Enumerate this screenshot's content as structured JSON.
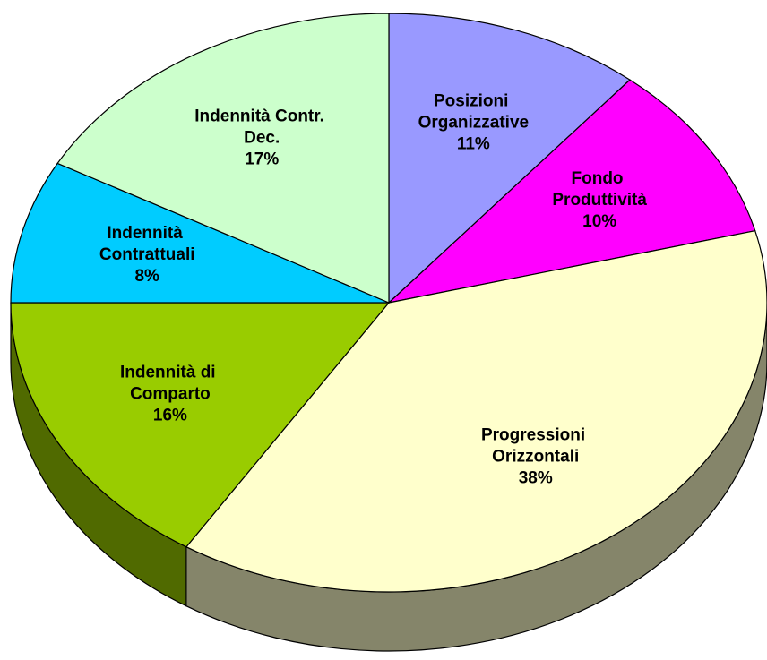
{
  "chart_data": {
    "type": "pie",
    "categories": [
      "Posizioni Organizzative",
      "Fondo Produttività",
      "Progressioni Orizzontali",
      "Indennità di Comparto",
      "Indennità Contrattuali",
      "Indennità Contr. Dec."
    ],
    "values": [
      11,
      10,
      38,
      16,
      8,
      17
    ],
    "value_labels": [
      "11%",
      "10%",
      "38%",
      "16%",
      "8%",
      "17%"
    ],
    "colors": [
      "#9999ff",
      "#ff00ff",
      "#ffffcc",
      "#99cc00",
      "#00ccff",
      "#ccffcc"
    ]
  }
}
